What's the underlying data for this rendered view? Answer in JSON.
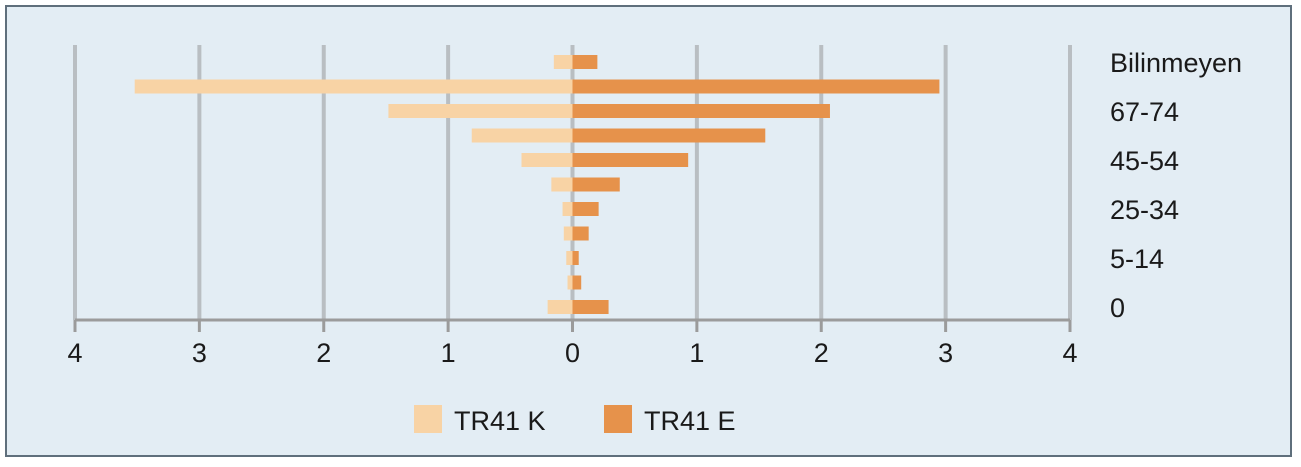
{
  "chart_data": {
    "type": "bar",
    "orientation": "horizontal",
    "layout": "population-pyramid",
    "categories": [
      "0",
      "",
      "5-14",
      "",
      "25-34",
      "",
      "45-54",
      "",
      "67-74",
      "",
      "Bilinmeyen"
    ],
    "series": [
      {
        "name": "TR41 K",
        "color": "#f8d3a5",
        "direction": "left",
        "values": [
          0.2,
          0.04,
          0.05,
          0.07,
          0.08,
          0.17,
          0.41,
          0.81,
          1.48,
          3.52,
          0.15
        ]
      },
      {
        "name": "TR41 E",
        "color": "#e6924b",
        "direction": "right",
        "values": [
          0.29,
          0.07,
          0.05,
          0.13,
          0.21,
          0.38,
          0.93,
          1.55,
          2.07,
          2.95,
          0.2
        ]
      }
    ],
    "xlim": [
      -4,
      4
    ],
    "x_ticks": [
      -4,
      -3,
      -2,
      -1,
      0,
      1,
      2,
      3,
      4
    ],
    "x_tick_labels": [
      "4",
      "3",
      "2",
      "1",
      "0",
      "1",
      "2",
      "3",
      "4"
    ],
    "grid": "vertical",
    "legend_position": "bottom-center",
    "title": "",
    "xlabel": "",
    "ylabel": ""
  },
  "colors": {
    "background": "#e3edf4",
    "border": "#5f6f7c",
    "grid": "#b9bec2",
    "axis": "#9b9b9b"
  }
}
